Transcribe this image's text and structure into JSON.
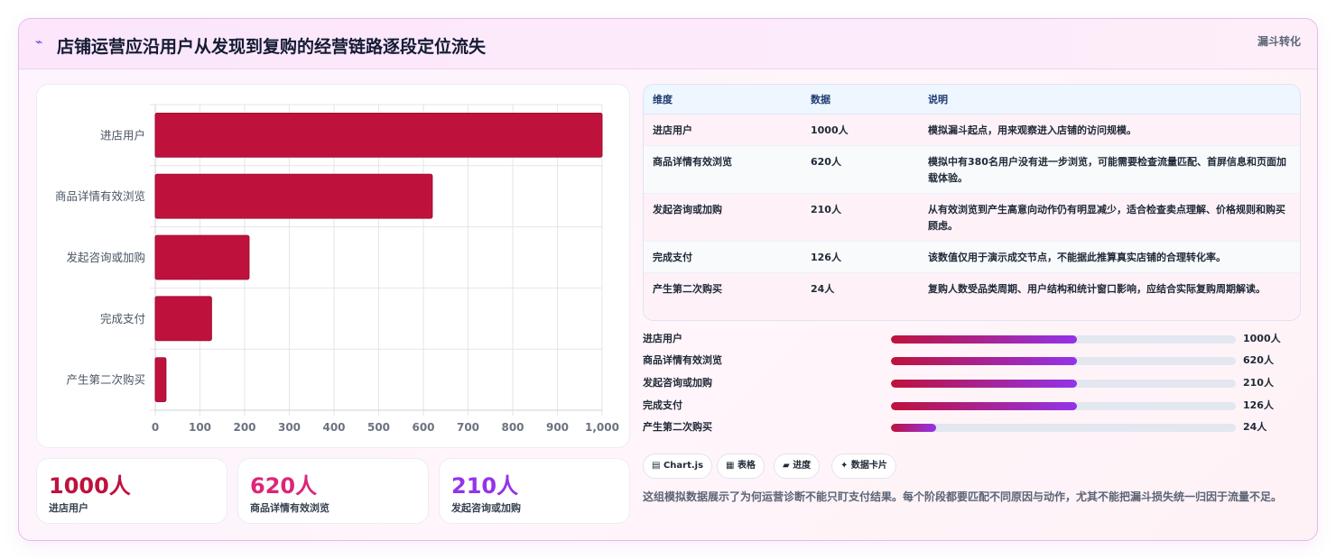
{
  "header": {
    "icon": "pulse-icon",
    "icon_glyph": "⌁",
    "title": "店铺运营应沿用户从发现到复购的经营链路逐段定位流失",
    "tag": "漏斗转化"
  },
  "chart_data": {
    "type": "bar",
    "orientation": "horizontal",
    "categories": [
      "进店用户",
      "商品详情有效浏览",
      "发起咨询或加购",
      "完成支付",
      "产生第二次购买"
    ],
    "values": [
      1000,
      620,
      210,
      126,
      24
    ],
    "title": "",
    "xlabel": "",
    "ylabel": "",
    "xlim": [
      0,
      1000
    ],
    "xticks": [
      "0",
      "100",
      "200",
      "300",
      "400",
      "500",
      "600",
      "700",
      "800",
      "900",
      "1,000"
    ],
    "grid": true,
    "legend": "none",
    "bar_color": "#be123c"
  },
  "stats": [
    {
      "value": "1000人",
      "label": "进店用户",
      "color": "#be123c"
    },
    {
      "value": "620人",
      "label": "商品详情有效浏览",
      "color": "#db2777"
    },
    {
      "value": "210人",
      "label": "发起咨询或加购",
      "color": "#9333ea"
    }
  ],
  "table": {
    "headers": [
      "维度",
      "数据",
      "说明"
    ],
    "rows": [
      [
        "进店用户",
        "1000人",
        "模拟漏斗起点，用来观察进入店铺的访问规模。"
      ],
      [
        "商品详情有效浏览",
        "620人",
        "模拟中有380名用户没有进一步浏览，可能需要检查流量匹配、首屏信息和页面加载体验。"
      ],
      [
        "发起咨询或加购",
        "210人",
        "从有效浏览到产生高意向动作仍有明显减少，适合检查卖点理解、价格规则和购买顾虑。"
      ],
      [
        "完成支付",
        "126人",
        "该数值仅用于演示成交节点，不能据此推算真实店铺的合理转化率。"
      ],
      [
        "产生第二次购买",
        "24人",
        "复购人数受品类周期、用户结构和统计窗口影响，应结合实际复购周期解读。"
      ]
    ]
  },
  "progress": [
    {
      "label": "进店用户",
      "value": "1000人",
      "fraction": 0.54
    },
    {
      "label": "商品详情有效浏览",
      "value": "620人",
      "fraction": 0.54
    },
    {
      "label": "发起咨询或加购",
      "value": "210人",
      "fraction": 0.54
    },
    {
      "label": "完成支付",
      "value": "126人",
      "fraction": 0.54
    },
    {
      "label": "产生第二次购买",
      "value": "24人",
      "fraction": 0.13
    }
  ],
  "chips": [
    {
      "icon": "chart-icon",
      "glyph": "▤",
      "label": "Chart.js"
    },
    {
      "icon": "table-icon",
      "glyph": "▦",
      "label": "表格"
    },
    {
      "icon": "progress-icon",
      "glyph": "▰",
      "label": "进度"
    },
    {
      "icon": "sparkle-icon",
      "glyph": "✦",
      "label": "数据卡片"
    }
  ],
  "note": "这组模拟数据展示了为何运营诊断不能只盯支付结果。每个阶段都要匹配不同原因与动作，尤其不能把漏斗损失统一归因于流量不足。"
}
